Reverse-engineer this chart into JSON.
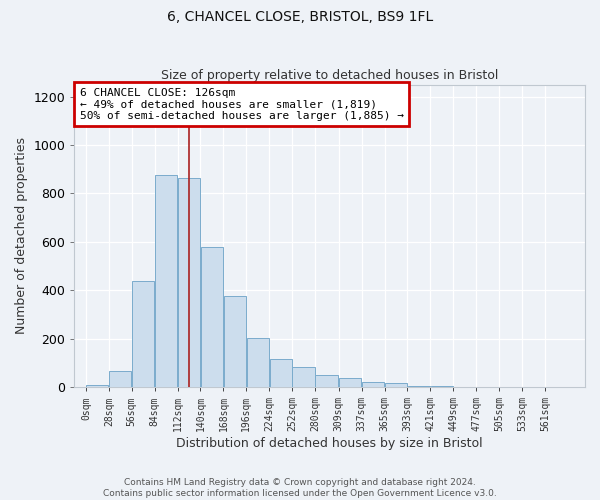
{
  "title1": "6, CHANCEL CLOSE, BRISTOL, BS9 1FL",
  "title2": "Size of property relative to detached houses in Bristol",
  "xlabel": "Distribution of detached houses by size in Bristol",
  "ylabel": "Number of detached properties",
  "bar_labels": [
    "0sqm",
    "28sqm",
    "56sqm",
    "84sqm",
    "112sqm",
    "140sqm",
    "168sqm",
    "196sqm",
    "224sqm",
    "252sqm",
    "280sqm",
    "309sqm",
    "337sqm",
    "365sqm",
    "393sqm",
    "421sqm",
    "449sqm",
    "477sqm",
    "505sqm",
    "533sqm",
    "561sqm"
  ],
  "bar_values": [
    10,
    65,
    440,
    875,
    865,
    578,
    375,
    205,
    115,
    85,
    52,
    38,
    22,
    18,
    5,
    3,
    2,
    1,
    1,
    0,
    0
  ],
  "bar_color": "#ccdded",
  "bar_edge_color": "#7aabcc",
  "annotation_text": "6 CHANCEL CLOSE: 126sqm\n← 49% of detached houses are smaller (1,819)\n50% of semi-detached houses are larger (1,885) →",
  "vline_x": 126,
  "vline_color": "#aa2222",
  "annotation_box_edge": "#cc0000",
  "footer": "Contains HM Land Registry data © Crown copyright and database right 2024.\nContains public sector information licensed under the Open Government Licence v3.0.",
  "ylim": [
    0,
    1250
  ],
  "background_color": "#eef2f7",
  "grid_color": "#ffffff",
  "bin_edges": [
    0,
    28,
    56,
    84,
    112,
    140,
    168,
    196,
    224,
    252,
    280,
    309,
    337,
    365,
    393,
    421,
    449,
    477,
    505,
    533,
    561,
    589
  ]
}
